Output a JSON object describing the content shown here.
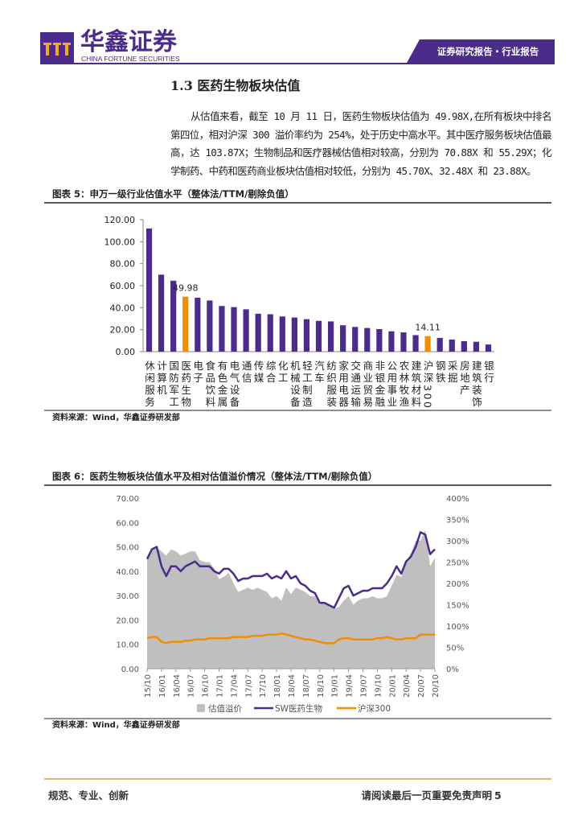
{
  "header": {
    "brand": "华鑫证券",
    "brand_en": "CHINA FORTUNE SECURITIES",
    "report_type": "证券研究报告・行业报告"
  },
  "section": {
    "title": "1.3 医药生物板块估值",
    "paragraph": "从估值来看，截至 10 月 11 日，医药生物板块估值为 49.98X,在所有板块中排名第四位，相对沪深 300 溢价率约为 254%，处于历史中高水平。其中医疗服务板块估值最高，达 103.87X；生物制品和医疗器械估值相对较高，分别为 70.88X 和 55.29X；化学制药、中药和医药商业板块估值相对较低，分别为 45.70X、32.48X 和 23.88X。"
  },
  "figures": [
    {
      "title": "图表 5：申万一级行业估值水平（整体法/TTM/剔除负值）",
      "source": "资料来源：Wind，华鑫证券研发部"
    },
    {
      "title": "图表 6：医药生物板块估值水平及相对估值溢价情况（整体法/TTM/剔除负值）",
      "source": "资料来源：Wind，华鑫证券研发部"
    }
  ],
  "footer": {
    "left": "规范、专业、创新",
    "right": "请阅读最后一页重要免责声明",
    "page": "5"
  },
  "chart_data": [
    {
      "type": "bar",
      "categories": [
        "休闲服务",
        "计算机",
        "国防军工",
        "医药生物",
        "电子",
        "食品饮料",
        "有色金属",
        "电气设备",
        "通信",
        "传媒",
        "综合",
        "化工",
        "机械设备",
        "轻工制造",
        "汽车",
        "纺织服装",
        "家用电器",
        "交通运输",
        "商业贸易",
        "非银金融",
        "公用事业",
        "农林牧渔",
        "建筑材料",
        "沪深300",
        "钢铁",
        "采掘",
        "房地产",
        "建筑装饰",
        "银行"
      ],
      "values": [
        112,
        70,
        64.5,
        49.98,
        49,
        46.5,
        41.5,
        40.5,
        38.5,
        34.5,
        34,
        32,
        31,
        29.5,
        28,
        27.5,
        24,
        22.5,
        21.5,
        20.5,
        18.5,
        17.5,
        15,
        14.11,
        12.5,
        11,
        9.5,
        9,
        6.5
      ],
      "color": "#4b2c8a",
      "highlight": {
        "color": "#f28c00",
        "indices": [
          3,
          23
        ]
      },
      "ylim": [
        0,
        120
      ],
      "yticks": [
        {
          "value": 0,
          "label": "0.00"
        },
        {
          "value": 20,
          "label": "20.00"
        },
        {
          "value": 40,
          "label": "40.00"
        },
        {
          "value": 60,
          "label": "60.00"
        },
        {
          "value": 80,
          "label": "80.00"
        },
        {
          "value": 100,
          "label": "100.00"
        },
        {
          "value": 120,
          "label": "120.00"
        }
      ]
    },
    {
      "type": "line",
      "categories": [
        "15/10",
        null,
        null,
        "16/01",
        null,
        null,
        "16/04",
        null,
        null,
        "16/07",
        null,
        null,
        "16/10",
        null,
        null,
        "17/01",
        null,
        null,
        "17/04",
        null,
        null,
        "17/07",
        null,
        null,
        "17/10",
        null,
        null,
        "18/01",
        null,
        null,
        "18/04",
        null,
        null,
        "18/07",
        null,
        null,
        "18/10",
        null,
        null,
        "19/01",
        null,
        null,
        "19/04",
        null,
        null,
        "19/07",
        null,
        null,
        "19/10",
        null,
        null,
        "20/01",
        null,
        null,
        "20/04",
        null,
        null,
        "20/07",
        null,
        null,
        "20/10"
      ],
      "series": [
        {
          "name": "估值溢价",
          "type": "area",
          "axis": "y2",
          "color": "#bfbfbf",
          "values": [
            260,
            280,
            285,
            275,
            265,
            280,
            275,
            265,
            270,
            275,
            275,
            255,
            250,
            250,
            235,
            210,
            215,
            225,
            200,
            180,
            185,
            190,
            185,
            190,
            185,
            180,
            165,
            170,
            160,
            190,
            175,
            190,
            185,
            180,
            170,
            170,
            150,
            155,
            150,
            140,
            145,
            160,
            170,
            150,
            160,
            165,
            165,
            170,
            165,
            165,
            170,
            195,
            220,
            215,
            250,
            270,
            300,
            300,
            325,
            240,
            260
          ]
        },
        {
          "name": "SW医药生物",
          "color": "#4b2c8a",
          "values": [
            45,
            49,
            50,
            42,
            38,
            42,
            42,
            40,
            42,
            43,
            44,
            42,
            42,
            42,
            40,
            39,
            41,
            41,
            39,
            36,
            37,
            37,
            38,
            38,
            38,
            39,
            37,
            38,
            37,
            40,
            37,
            38,
            35,
            34,
            32,
            31,
            27,
            27,
            26,
            25,
            29,
            33,
            34,
            30,
            31,
            32,
            32,
            33,
            33,
            33,
            35,
            38,
            42,
            39,
            44,
            46,
            50,
            56,
            55,
            47,
            49
          ]
        },
        {
          "name": "沪深300",
          "color": "#f28c00",
          "values": [
            12.5,
            13,
            13,
            11,
            10.5,
            11,
            11,
            11,
            11.5,
            11.5,
            12,
            12,
            12,
            12.5,
            12.5,
            12.5,
            12.5,
            12.5,
            13,
            13,
            13,
            13,
            13.5,
            13.5,
            13.5,
            14,
            14,
            14,
            14.5,
            14,
            13.5,
            13,
            12.5,
            12,
            12,
            11.5,
            11,
            10.5,
            10.5,
            10.5,
            12,
            12.5,
            12.5,
            12,
            12,
            12,
            12,
            12,
            12.5,
            12.5,
            13,
            12.5,
            12,
            12,
            12.5,
            12.5,
            12.5,
            14,
            14,
            14,
            14
          ]
        }
      ],
      "ylim": [
        0,
        70
      ],
      "yticks": [
        {
          "value": 0,
          "label": "0.00"
        },
        {
          "value": 10,
          "label": "10.00"
        },
        {
          "value": 20,
          "label": "20.00"
        },
        {
          "value": 30,
          "label": "30.00"
        },
        {
          "value": 40,
          "label": "40.00"
        },
        {
          "value": 50,
          "label": "50.00"
        },
        {
          "value": 60,
          "label": "60.00"
        },
        {
          "value": 70,
          "label": "70.00"
        }
      ],
      "y2lim": [
        0,
        400
      ],
      "y2ticks": [
        {
          "value": 0,
          "label": "0%"
        },
        {
          "value": 50,
          "label": "50%"
        },
        {
          "value": 100,
          "label": "100%"
        },
        {
          "value": 150,
          "label": "150%"
        },
        {
          "value": 200,
          "label": "200%"
        },
        {
          "value": 250,
          "label": "250%"
        },
        {
          "value": 300,
          "label": "300%"
        },
        {
          "value": 350,
          "label": "350%"
        },
        {
          "value": 400,
          "label": "400%"
        }
      ],
      "legend": "bottom"
    }
  ]
}
